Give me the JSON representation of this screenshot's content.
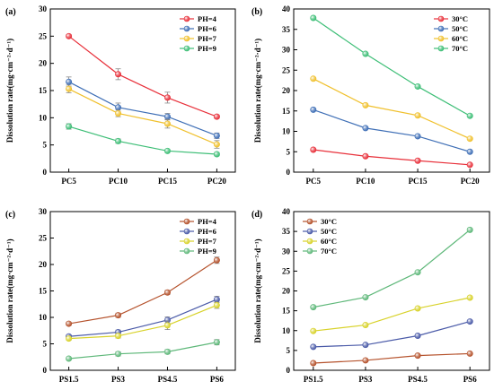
{
  "chart_data": [
    {
      "panel": "(a)",
      "type": "line",
      "categories": [
        "PC5",
        "PC10",
        "PC15",
        "PC20"
      ],
      "ylabel": "Dissolution rate(mg·cm⁻²·d⁻¹)",
      "ylim": [
        0,
        30
      ],
      "yticks": [
        0,
        5,
        10,
        15,
        20,
        25,
        30
      ],
      "legend_position": "top-right",
      "error_bars": true,
      "series": [
        {
          "name": "PH=4",
          "color": "#e8303a",
          "values": [
            25.0,
            18.0,
            13.7,
            10.2
          ],
          "errors": [
            0.3,
            1.0,
            1.0,
            0.3
          ]
        },
        {
          "name": "PH=6",
          "color": "#3f6fb6",
          "values": [
            16.6,
            11.9,
            10.2,
            6.7
          ],
          "errors": [
            0.9,
            0.8,
            0.6,
            0.5
          ]
        },
        {
          "name": "PH=7",
          "color": "#f0c02c",
          "values": [
            15.3,
            10.8,
            8.9,
            5.1
          ],
          "errors": [
            0.7,
            0.6,
            0.8,
            0.7
          ]
        },
        {
          "name": "PH=9",
          "color": "#3dbe76",
          "values": [
            8.4,
            5.7,
            3.9,
            3.3
          ],
          "errors": [
            0.5,
            0.4,
            0.3,
            0.3
          ]
        }
      ]
    },
    {
      "panel": "(b)",
      "type": "line",
      "categories": [
        "PC5",
        "PC10",
        "PC15",
        "PC20"
      ],
      "ylabel": "Dissolution rate(mg·cm⁻²·d⁻¹)",
      "ylim": [
        0,
        40
      ],
      "yticks": [
        0,
        5,
        10,
        15,
        20,
        25,
        30,
        35,
        40
      ],
      "legend_position": "top-right",
      "error_bars": false,
      "series": [
        {
          "name": "30°C",
          "color": "#e8303a",
          "values": [
            5.5,
            3.9,
            2.8,
            1.8
          ]
        },
        {
          "name": "50°C",
          "color": "#3f6fb6",
          "values": [
            15.3,
            10.8,
            8.8,
            5.0
          ]
        },
        {
          "name": "60°C",
          "color": "#f0c02c",
          "values": [
            22.9,
            16.4,
            13.9,
            8.2
          ]
        },
        {
          "name": "70°C",
          "color": "#3dbe76",
          "values": [
            37.8,
            29.0,
            21.0,
            13.8
          ]
        }
      ]
    },
    {
      "panel": "(c)",
      "type": "line",
      "categories": [
        "PS1.5",
        "PS3",
        "PS4.5",
        "PS6"
      ],
      "ylabel": "Dissolution rate(mg·cm⁻²·d⁻¹)",
      "ylim": [
        0,
        30
      ],
      "yticks": [
        0,
        5,
        10,
        15,
        20,
        25,
        30
      ],
      "legend_position": "top-right",
      "error_bars": true,
      "series": [
        {
          "name": "PH=4",
          "color": "#b5522c",
          "values": [
            8.8,
            10.4,
            14.7,
            20.8
          ],
          "errors": [
            0.3,
            0.4,
            0.4,
            0.6
          ]
        },
        {
          "name": "PH=6",
          "color": "#4a5aa8",
          "values": [
            6.4,
            7.2,
            9.5,
            13.4
          ],
          "errors": [
            0.3,
            0.4,
            0.6,
            0.6
          ]
        },
        {
          "name": "PH=7",
          "color": "#d8d22a",
          "values": [
            6.0,
            6.5,
            8.5,
            12.3
          ],
          "errors": [
            0.3,
            0.4,
            0.8,
            0.6
          ]
        },
        {
          "name": "PH=9",
          "color": "#5fb87a",
          "values": [
            2.2,
            3.1,
            3.5,
            5.3
          ],
          "errors": [
            0.2,
            0.4,
            0.4,
            0.5
          ]
        }
      ]
    },
    {
      "panel": "(d)",
      "type": "line",
      "categories": [
        "PS1.5",
        "PS3",
        "PS4.5",
        "PS6"
      ],
      "ylabel": "Dissolution rate(mg·cm⁻²·d⁻¹)",
      "ylim": [
        0,
        40
      ],
      "yticks": [
        0,
        5,
        10,
        15,
        20,
        25,
        30,
        35,
        40
      ],
      "legend_position": "top-left",
      "error_bars": false,
      "series": [
        {
          "name": "30°C",
          "color": "#b5522c",
          "values": [
            1.8,
            2.5,
            3.7,
            4.2
          ]
        },
        {
          "name": "50°C",
          "color": "#4a5aa8",
          "values": [
            5.9,
            6.4,
            8.7,
            12.3
          ]
        },
        {
          "name": "60°C",
          "color": "#d8d22a",
          "values": [
            9.9,
            11.4,
            15.6,
            18.3
          ]
        },
        {
          "name": "70°C",
          "color": "#5fb87a",
          "values": [
            15.9,
            18.4,
            24.7,
            35.4
          ]
        }
      ]
    }
  ]
}
